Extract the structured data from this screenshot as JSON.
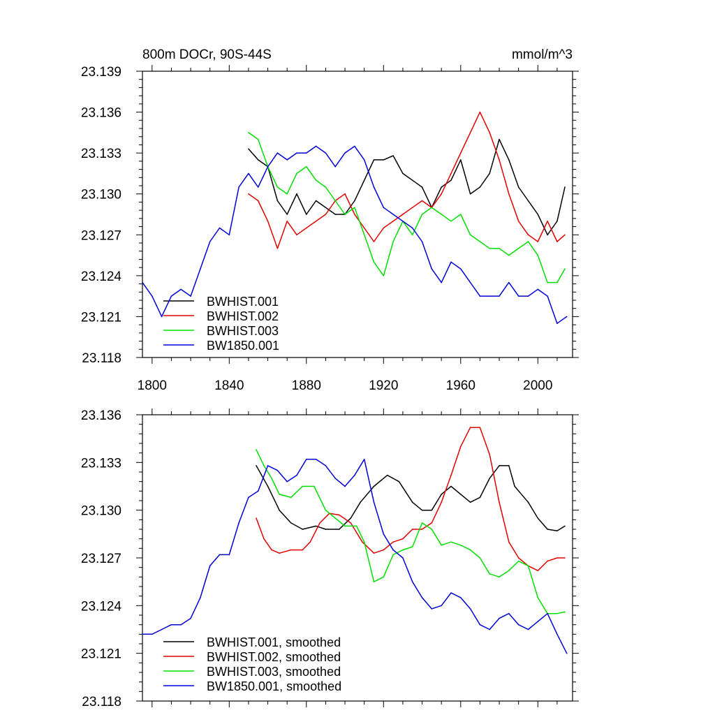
{
  "colors": {
    "black": "#000000",
    "red": "#e00000",
    "green": "#00e000",
    "blue": "#0000d8"
  },
  "chart_data": [
    {
      "type": "line",
      "title": "800m DOCr, 90S-44S",
      "units": "mmol/m^3",
      "xlim": [
        1795,
        2018
      ],
      "ylim": [
        23.118,
        23.139
      ],
      "x_ticks": [
        1800,
        1840,
        1880,
        1920,
        1960,
        2000
      ],
      "y_ticks": [
        23.118,
        23.121,
        23.124,
        23.127,
        23.13,
        23.133,
        23.136,
        23.139
      ],
      "y_tick_labels": [
        "23.118",
        "23.121",
        "23.124",
        "23.127",
        "23.130",
        "23.133",
        "23.136",
        "23.139"
      ],
      "legend_position": "bottom-left",
      "series": [
        {
          "name": "BWHIST.001",
          "color": "black",
          "x": [
            1850,
            1855,
            1860,
            1865,
            1870,
            1875,
            1880,
            1885,
            1890,
            1895,
            1900,
            1905,
            1910,
            1915,
            1920,
            1925,
            1930,
            1935,
            1940,
            1945,
            1950,
            1955,
            1960,
            1965,
            1970,
            1975,
            1980,
            1985,
            1990,
            1995,
            2000,
            2005,
            2010,
            2014
          ],
          "values": [
            23.1333,
            23.1325,
            23.132,
            23.1295,
            23.1285,
            23.13,
            23.1285,
            23.1295,
            23.129,
            23.1285,
            23.1285,
            23.1295,
            23.131,
            23.1325,
            23.1325,
            23.1328,
            23.1315,
            23.131,
            23.1305,
            23.129,
            23.1305,
            23.131,
            23.1325,
            23.13,
            23.1305,
            23.1315,
            23.134,
            23.1325,
            23.1305,
            23.1295,
            23.1285,
            23.127,
            23.128,
            23.1305
          ]
        },
        {
          "name": "BWHIST.002",
          "color": "red",
          "x": [
            1850,
            1855,
            1860,
            1865,
            1870,
            1875,
            1880,
            1885,
            1890,
            1895,
            1900,
            1905,
            1910,
            1915,
            1920,
            1925,
            1930,
            1935,
            1940,
            1945,
            1950,
            1955,
            1960,
            1965,
            1970,
            1975,
            1980,
            1985,
            1990,
            1995,
            2000,
            2005,
            2010,
            2014
          ],
          "values": [
            23.13,
            23.1295,
            23.128,
            23.126,
            23.128,
            23.127,
            23.1275,
            23.128,
            23.1285,
            23.1295,
            23.13,
            23.1285,
            23.1275,
            23.1265,
            23.1275,
            23.128,
            23.1285,
            23.129,
            23.1295,
            23.129,
            23.13,
            23.1315,
            23.133,
            23.1345,
            23.136,
            23.1345,
            23.1325,
            23.13,
            23.128,
            23.127,
            23.1265,
            23.128,
            23.1265,
            23.127
          ]
        },
        {
          "name": "BWHIST.003",
          "color": "green",
          "x": [
            1850,
            1855,
            1860,
            1865,
            1870,
            1875,
            1880,
            1885,
            1890,
            1895,
            1900,
            1905,
            1910,
            1915,
            1920,
            1925,
            1930,
            1935,
            1940,
            1945,
            1950,
            1955,
            1960,
            1965,
            1970,
            1975,
            1980,
            1985,
            1990,
            1995,
            2000,
            2005,
            2010,
            2014
          ],
          "values": [
            23.1345,
            23.134,
            23.132,
            23.1305,
            23.13,
            23.1315,
            23.132,
            23.131,
            23.1305,
            23.1295,
            23.1285,
            23.129,
            23.127,
            23.125,
            23.124,
            23.1265,
            23.128,
            23.127,
            23.1285,
            23.129,
            23.1285,
            23.128,
            23.1285,
            23.127,
            23.1265,
            23.126,
            23.126,
            23.1255,
            23.126,
            23.1265,
            23.1255,
            23.1235,
            23.1235,
            23.1245
          ]
        },
        {
          "name": "BW1850.001",
          "color": "blue",
          "x": [
            1795,
            1800,
            1805,
            1810,
            1815,
            1820,
            1825,
            1830,
            1835,
            1840,
            1845,
            1850,
            1855,
            1860,
            1865,
            1870,
            1875,
            1880,
            1885,
            1890,
            1895,
            1900,
            1905,
            1910,
            1915,
            1920,
            1925,
            1930,
            1935,
            1940,
            1945,
            1950,
            1955,
            1960,
            1965,
            1970,
            1975,
            1980,
            1985,
            1990,
            1995,
            2000,
            2005,
            2010,
            2015
          ],
          "values": [
            23.1235,
            23.1225,
            23.121,
            23.1225,
            23.123,
            23.1225,
            23.1245,
            23.1265,
            23.1275,
            23.127,
            23.1305,
            23.1315,
            23.1305,
            23.132,
            23.133,
            23.1325,
            23.133,
            23.133,
            23.1335,
            23.133,
            23.132,
            23.133,
            23.1335,
            23.1325,
            23.1305,
            23.129,
            23.1285,
            23.128,
            23.1275,
            23.1265,
            23.1245,
            23.1235,
            23.125,
            23.1245,
            23.1235,
            23.1225,
            23.1225,
            23.1225,
            23.1235,
            23.1225,
            23.1225,
            23.123,
            23.1225,
            23.1205,
            23.121
          ]
        }
      ]
    },
    {
      "type": "line",
      "title": "",
      "xlim": [
        1795,
        2018
      ],
      "ylim": [
        23.118,
        23.136
      ],
      "x_ticks": [
        1800,
        1840,
        1880,
        1920,
        1960,
        2000
      ],
      "y_ticks": [
        23.118,
        23.121,
        23.124,
        23.127,
        23.13,
        23.133,
        23.136
      ],
      "y_tick_labels": [
        "23.118",
        "23.121",
        "23.124",
        "23.127",
        "23.130",
        "23.133",
        "23.136"
      ],
      "legend_position": "bottom-left",
      "series": [
        {
          "name": "BWHIST.001, smoothed",
          "color": "black",
          "x": [
            1854,
            1860,
            1866,
            1872,
            1878,
            1885,
            1890,
            1897,
            1903,
            1908,
            1915,
            1922,
            1928,
            1935,
            1940,
            1945,
            1950,
            1955,
            1960,
            1965,
            1970,
            1975,
            1980,
            1985,
            1988,
            1995,
            2000,
            2005,
            2010,
            2014
          ],
          "values": [
            23.1328,
            23.1315,
            23.13,
            23.1292,
            23.1288,
            23.129,
            23.1288,
            23.1288,
            23.1295,
            23.1305,
            23.1315,
            23.1322,
            23.1318,
            23.1305,
            23.13,
            23.13,
            23.131,
            23.1315,
            23.131,
            23.1305,
            23.1308,
            23.132,
            23.1328,
            23.1328,
            23.1315,
            23.1305,
            23.1295,
            23.1288,
            23.1287,
            23.129
          ]
        },
        {
          "name": "BWHIST.002, smoothed",
          "color": "red",
          "x": [
            1854,
            1858,
            1862,
            1866,
            1872,
            1878,
            1882,
            1887,
            1892,
            1897,
            1903,
            1909,
            1915,
            1920,
            1925,
            1930,
            1935,
            1940,
            1945,
            1950,
            1955,
            1960,
            1965,
            1970,
            1975,
            1980,
            1985,
            1990,
            1995,
            2000,
            2005,
            2010,
            2014
          ],
          "values": [
            23.1295,
            23.1282,
            23.1275,
            23.1273,
            23.1275,
            23.1275,
            23.128,
            23.1292,
            23.1298,
            23.1297,
            23.1292,
            23.128,
            23.1273,
            23.1275,
            23.128,
            23.1282,
            23.1288,
            23.1288,
            23.1292,
            23.1305,
            23.1322,
            23.134,
            23.1352,
            23.1352,
            23.1335,
            23.1305,
            23.128,
            23.127,
            23.1265,
            23.1262,
            23.1268,
            23.127,
            23.127
          ]
        },
        {
          "name": "BWHIST.003, smoothed",
          "color": "green",
          "x": [
            1854,
            1858,
            1862,
            1866,
            1872,
            1878,
            1884,
            1890,
            1895,
            1900,
            1906,
            1910,
            1915,
            1920,
            1925,
            1930,
            1935,
            1940,
            1945,
            1950,
            1955,
            1960,
            1965,
            1970,
            1975,
            1980,
            1985,
            1990,
            1995,
            2000,
            2005,
            2010,
            2014
          ],
          "values": [
            23.1338,
            23.1328,
            23.132,
            23.131,
            23.1308,
            23.1315,
            23.1315,
            23.13,
            23.1295,
            23.129,
            23.129,
            23.128,
            23.1255,
            23.1258,
            23.1272,
            23.1275,
            23.1277,
            23.1292,
            23.1288,
            23.1278,
            23.128,
            23.1278,
            23.1275,
            23.127,
            23.126,
            23.1258,
            23.1262,
            23.1268,
            23.1265,
            23.1245,
            23.1235,
            23.1235,
            23.1236
          ]
        },
        {
          "name": "BW1850.001, smoothed",
          "color": "blue",
          "x": [
            1795,
            1800,
            1805,
            1810,
            1815,
            1820,
            1825,
            1830,
            1835,
            1840,
            1845,
            1850,
            1855,
            1860,
            1865,
            1870,
            1875,
            1880,
            1885,
            1890,
            1895,
            1900,
            1905,
            1910,
            1915,
            1920,
            1925,
            1930,
            1935,
            1940,
            1945,
            1950,
            1955,
            1960,
            1965,
            1970,
            1975,
            1980,
            1985,
            1990,
            1995,
            2000,
            2005,
            2010,
            2015
          ],
          "values": [
            23.1222,
            23.1222,
            23.1225,
            23.1228,
            23.1228,
            23.1232,
            23.1245,
            23.1265,
            23.1272,
            23.1272,
            23.1292,
            23.1308,
            23.1312,
            23.1328,
            23.1325,
            23.1318,
            23.1322,
            23.1332,
            23.1332,
            23.1328,
            23.132,
            23.1315,
            23.1322,
            23.1332,
            23.1305,
            23.1285,
            23.1275,
            23.127,
            23.1255,
            23.1245,
            23.1238,
            23.124,
            23.1248,
            23.1245,
            23.1238,
            23.1228,
            23.1225,
            23.1232,
            23.1235,
            23.1228,
            23.1225,
            23.123,
            23.1235,
            23.1222,
            23.121
          ]
        }
      ]
    }
  ]
}
